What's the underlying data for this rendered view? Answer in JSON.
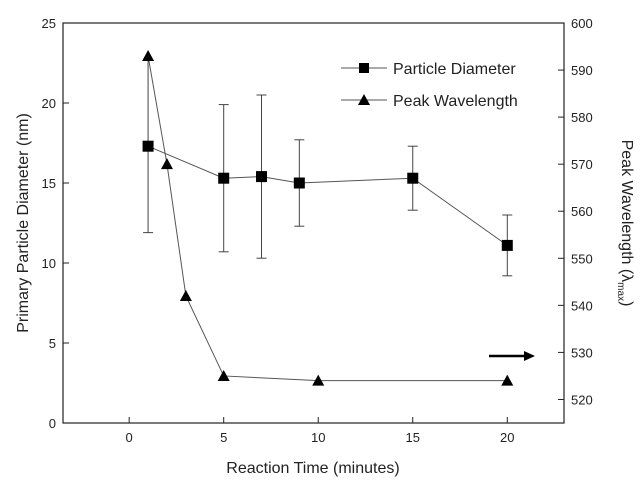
{
  "chart_data": {
    "type": "scatter",
    "xlabel": "Reaction Time (minutes)",
    "ylabel": "Primary Particle Diameter (nm)",
    "y2label_main": "Peak Wavelength (λ",
    "y2label_sub": "max",
    "y2label_close": ")",
    "xlim": [
      -3.5,
      23
    ],
    "ylim": [
      0,
      25
    ],
    "y2lim": [
      515,
      600
    ],
    "xticks": [
      0,
      5,
      10,
      15,
      20
    ],
    "yticks": [
      0,
      5,
      10,
      15,
      20,
      25
    ],
    "y2ticks": [
      520,
      530,
      540,
      550,
      560,
      570,
      580,
      590,
      600
    ],
    "grid": false,
    "legend_position": "top-right",
    "series": [
      {
        "name": "Particle Diameter",
        "axis": "left",
        "marker": "square",
        "x": [
          1,
          5,
          7,
          9,
          15,
          20
        ],
        "y": [
          17.3,
          15.3,
          15.4,
          15.0,
          15.3,
          11.1
        ],
        "err": [
          5.4,
          4.6,
          5.1,
          2.7,
          2.0,
          1.9
        ]
      },
      {
        "name": "Peak Wavelength",
        "axis": "right",
        "marker": "triangle",
        "x": [
          1,
          2,
          3,
          5,
          10,
          20
        ],
        "y": [
          593,
          570,
          542,
          525,
          524,
          524
        ]
      }
    ],
    "annotation": {
      "type": "arrow",
      "direction": "right",
      "meaning": "right-axis series"
    }
  }
}
